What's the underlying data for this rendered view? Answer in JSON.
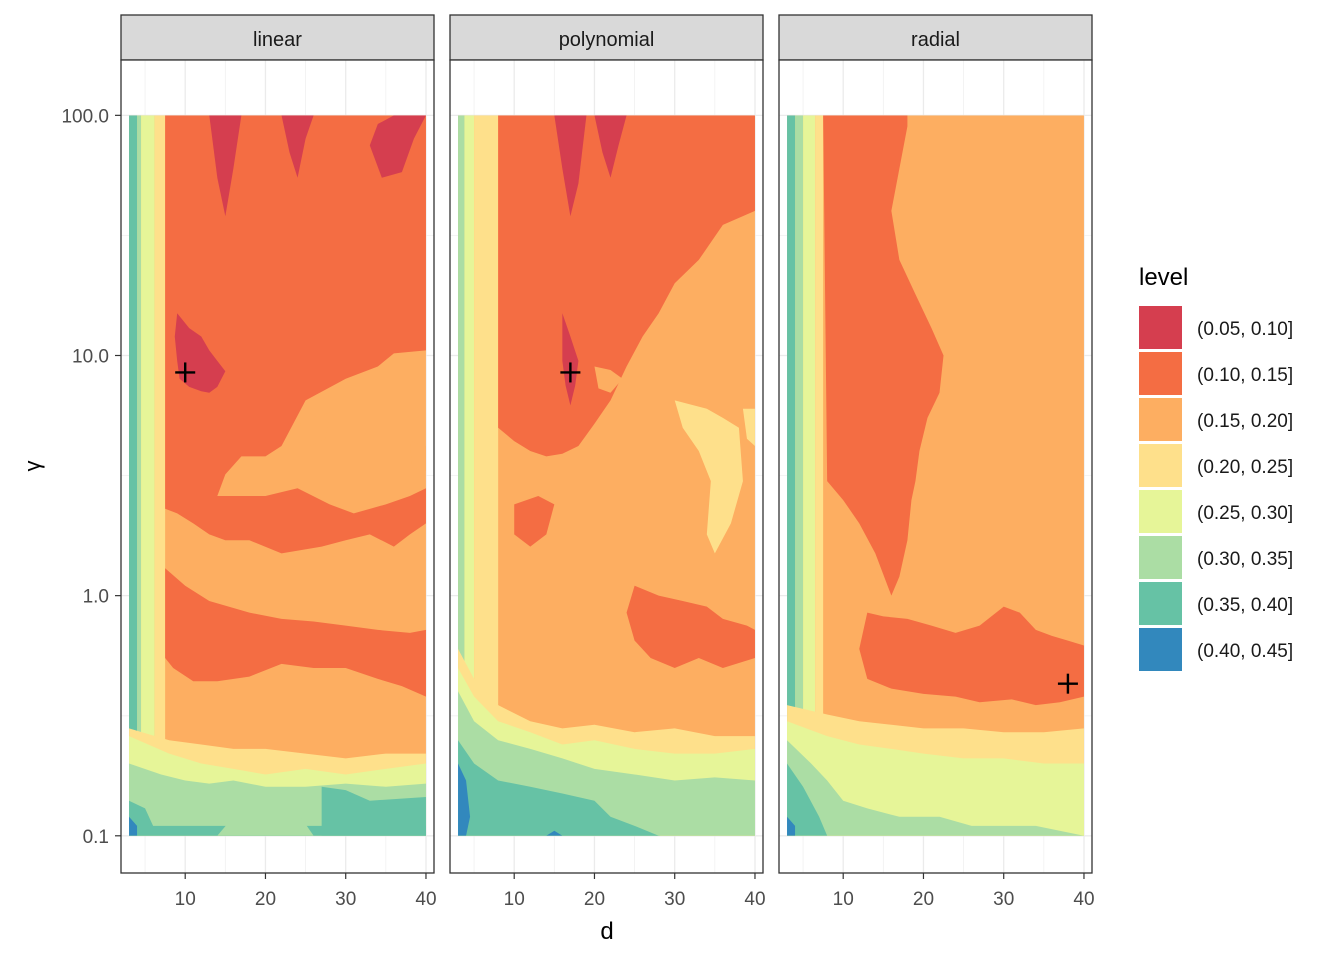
{
  "chart_data": {
    "type": "heatmap",
    "subtype": "filled-contour",
    "facet_by": "kernel",
    "xlabel": "d",
    "ylabel": "γ",
    "x_scale": "linear",
    "y_scale": "log10",
    "xlim": [
      2,
      41
    ],
    "ylim": [
      0.07,
      170
    ],
    "x_ticks": [
      10,
      20,
      30,
      40
    ],
    "x_tick_labels": [
      "10",
      "20",
      "30",
      "40"
    ],
    "y_ticks": [
      0.1,
      1,
      10,
      100
    ],
    "y_tick_labels": [
      "0.1",
      "1.0",
      "10.0",
      "100.0"
    ],
    "data_extent": {
      "x": [
        3,
        40
      ],
      "y": [
        0.1,
        100
      ]
    },
    "grid": true,
    "theme": "bw",
    "legend": {
      "title": "level",
      "position": "right",
      "levels": [
        {
          "label": "(0.05, 0.10]",
          "color": "#D53E4F"
        },
        {
          "label": "(0.10, 0.15]",
          "color": "#F46D43"
        },
        {
          "label": "(0.15, 0.20]",
          "color": "#FDAE61"
        },
        {
          "label": "(0.20, 0.25]",
          "color": "#FEE08B"
        },
        {
          "label": "(0.25, 0.30]",
          "color": "#E6F598"
        },
        {
          "label": "(0.30, 0.35]",
          "color": "#ABDDA4"
        },
        {
          "label": "(0.35, 0.40]",
          "color": "#66C2A5"
        },
        {
          "label": "(0.40, 0.45]",
          "color": "#3288BD"
        }
      ]
    },
    "facets": [
      {
        "label": "linear",
        "minimum": {
          "d": 10,
          "gamma": 8.5
        },
        "regions": [
          {
            "level": 1,
            "outline": [
              [
                7.5,
                100
              ],
              [
                40,
                100
              ],
              [
                40,
                10.5
              ],
              [
                36,
                10.2
              ],
              [
                34,
                9
              ],
              [
                30,
                8
              ],
              [
                25,
                6.5
              ],
              [
                22,
                4.2
              ],
              [
                20,
                3.8
              ],
              [
                17,
                3.8
              ],
              [
                15,
                3.2
              ],
              [
                14,
                2.6
              ],
              [
                20,
                2.6
              ],
              [
                24,
                2.8
              ],
              [
                28,
                2.4
              ],
              [
                31,
                2.2
              ],
              [
                35,
                2.4
              ],
              [
                38,
                2.6
              ],
              [
                40,
                2.8
              ],
              [
                40,
                2
              ],
              [
                38,
                1.8
              ],
              [
                36,
                1.6
              ],
              [
                33,
                1.8
              ],
              [
                30,
                1.7
              ],
              [
                27,
                1.6
              ],
              [
                22,
                1.5
              ],
              [
                18,
                1.7
              ],
              [
                15,
                1.7
              ],
              [
                13,
                1.8
              ],
              [
                11,
                2
              ],
              [
                9,
                2.2
              ],
              [
                7.5,
                2.3
              ]
            ]
          },
          {
            "level": 1,
            "outline": [
              [
                7.5,
                1.3
              ],
              [
                10,
                1.1
              ],
              [
                13,
                0.95
              ],
              [
                18,
                0.85
              ],
              [
                22,
                0.8
              ],
              [
                26,
                0.78
              ],
              [
                30,
                0.75
              ],
              [
                34,
                0.72
              ],
              [
                38,
                0.7
              ],
              [
                40,
                0.72
              ],
              [
                40,
                0.38
              ],
              [
                37,
                0.42
              ],
              [
                34,
                0.45
              ],
              [
                30,
                0.5
              ],
              [
                26,
                0.5
              ],
              [
                22,
                0.52
              ],
              [
                18,
                0.46
              ],
              [
                14,
                0.44
              ],
              [
                11,
                0.44
              ],
              [
                8.5,
                0.5
              ],
              [
                7.5,
                0.55
              ]
            ]
          },
          {
            "level": 0,
            "outline": [
              [
                9,
                15
              ],
              [
                10.5,
                13
              ],
              [
                12,
                12
              ],
              [
                13,
                10.5
              ],
              [
                14,
                9.5
              ],
              [
                15,
                8.6
              ],
              [
                14,
                7.4
              ],
              [
                13,
                7
              ],
              [
                12,
                7.1
              ],
              [
                10.5,
                7.4
              ],
              [
                9.3,
                8
              ],
              [
                9,
                9.5
              ],
              [
                8.7,
                12
              ]
            ]
          },
          {
            "level": 0,
            "outline": [
              [
                13,
                100
              ],
              [
                14,
                55
              ],
              [
                15,
                38
              ],
              [
                16,
                60
              ],
              [
                17,
                100
              ]
            ]
          },
          {
            "level": 0,
            "outline": [
              [
                22,
                100
              ],
              [
                23,
                70
              ],
              [
                24,
                55
              ],
              [
                25,
                80
              ],
              [
                26,
                100
              ]
            ]
          },
          {
            "level": 0,
            "outline": [
              [
                33,
                75
              ],
              [
                34.5,
                55
              ],
              [
                37,
                58
              ],
              [
                38.5,
                80
              ],
              [
                40,
                100
              ],
              [
                36,
                100
              ],
              [
                34,
                92
              ]
            ]
          },
          {
            "level": 2,
            "outline": [
              [
                24.5,
                6
              ],
              [
                26.5,
                5.5
              ],
              [
                28,
                5.8
              ],
              [
                27.5,
                4.5
              ],
              [
                25.5,
                4.2
              ],
              [
                24.3,
                5
              ]
            ]
          },
          {
            "level": 2,
            "outline": [
              [
                38,
                4.4
              ],
              [
                40,
                4.2
              ],
              [
                40,
                3.3
              ],
              [
                38.3,
                3.4
              ]
            ]
          }
        ]
      },
      {
        "label": "polynomial",
        "minimum": {
          "d": 17,
          "gamma": 8.5
        },
        "regions": [
          {
            "level": 1,
            "outline": [
              [
                8,
                100
              ],
              [
                40,
                100
              ],
              [
                40,
                40
              ],
              [
                36,
                35
              ],
              [
                33,
                25
              ],
              [
                30,
                20
              ],
              [
                28,
                15
              ],
              [
                26,
                12
              ],
              [
                24,
                9
              ],
              [
                22,
                6.5
              ],
              [
                20,
                5.2
              ],
              [
                18,
                4.2
              ],
              [
                16,
                3.9
              ],
              [
                14,
                3.8
              ],
              [
                12,
                4
              ],
              [
                10,
                4.4
              ],
              [
                8,
                5
              ]
            ]
          },
          {
            "level": 1,
            "outline": [
              [
                10,
                2.4
              ],
              [
                13,
                2.6
              ],
              [
                15,
                2.4
              ],
              [
                14,
                1.8
              ],
              [
                12,
                1.6
              ],
              [
                10,
                1.8
              ]
            ]
          },
          {
            "level": 1,
            "outline": [
              [
                25,
                1.1
              ],
              [
                28,
                1
              ],
              [
                31,
                0.95
              ],
              [
                34,
                0.9
              ],
              [
                36,
                0.8
              ],
              [
                39,
                0.75
              ],
              [
                40,
                0.72
              ],
              [
                40,
                0.55
              ],
              [
                36,
                0.5
              ],
              [
                33,
                0.55
              ],
              [
                30,
                0.5
              ],
              [
                27,
                0.55
              ],
              [
                25,
                0.65
              ],
              [
                24,
                0.85
              ]
            ]
          },
          {
            "level": 0,
            "outline": [
              [
                16,
                15
              ],
              [
                17,
                12
              ],
              [
                18,
                9.5
              ],
              [
                17.6,
                7.5
              ],
              [
                17,
                6.2
              ],
              [
                16.4,
                7.5
              ],
              [
                16,
                9.5
              ]
            ]
          },
          {
            "level": 0,
            "outline": [
              [
                15,
                100
              ],
              [
                16,
                60
              ],
              [
                17,
                38
              ],
              [
                18,
                52
              ],
              [
                19,
                100
              ]
            ]
          },
          {
            "level": 0,
            "outline": [
              [
                20,
                100
              ],
              [
                21,
                70
              ],
              [
                22,
                55
              ],
              [
                23,
                75
              ],
              [
                24,
                100
              ]
            ]
          },
          {
            "level": 2,
            "outline": [
              [
                20,
                9
              ],
              [
                22,
                8.7
              ],
              [
                23.5,
                8
              ],
              [
                22,
                7
              ],
              [
                20.5,
                7.3
              ]
            ]
          },
          {
            "level": 3,
            "outline": [
              [
                30,
                6.5
              ],
              [
                34,
                6
              ],
              [
                36,
                5.5
              ],
              [
                38,
                5
              ],
              [
                38.5,
                3
              ],
              [
                37,
                2
              ],
              [
                35,
                1.5
              ],
              [
                34,
                1.8
              ],
              [
                34.5,
                3
              ],
              [
                33,
                4
              ],
              [
                31,
                5
              ]
            ]
          },
          {
            "level": 3,
            "outline": [
              [
                38.5,
                6
              ],
              [
                40,
                6
              ],
              [
                40,
                4.2
              ],
              [
                39,
                4.5
              ]
            ]
          }
        ]
      },
      {
        "label": "radial",
        "minimum": {
          "d": 38,
          "gamma": 0.43
        },
        "regions": [
          {
            "level": 1,
            "outline": [
              [
                7.5,
                100
              ],
              [
                18,
                100
              ],
              [
                18,
                90
              ],
              [
                17,
                60
              ],
              [
                16,
                40
              ],
              [
                17,
                25
              ],
              [
                19,
                18
              ],
              [
                21,
                13
              ],
              [
                22.5,
                10
              ],
              [
                22,
                7
              ],
              [
                20.5,
                5.5
              ],
              [
                19.5,
                4
              ],
              [
                19,
                3
              ],
              [
                18.5,
                2.5
              ],
              [
                18,
                1.7
              ],
              [
                17,
                1.2
              ],
              [
                16,
                1
              ],
              [
                14,
                1.5
              ],
              [
                12,
                2
              ],
              [
                10,
                2.5
              ],
              [
                8,
                3
              ]
            ]
          },
          {
            "level": 1,
            "outline": [
              [
                13,
                0.85
              ],
              [
                15,
                0.82
              ],
              [
                18,
                0.8
              ],
              [
                21,
                0.75
              ],
              [
                24,
                0.7
              ],
              [
                27,
                0.75
              ],
              [
                30,
                0.9
              ],
              [
                32,
                0.85
              ],
              [
                34,
                0.72
              ],
              [
                36,
                0.68
              ],
              [
                38,
                0.65
              ],
              [
                40,
                0.62
              ],
              [
                40,
                0.38
              ],
              [
                37,
                0.36
              ],
              [
                34,
                0.35
              ],
              [
                31,
                0.37
              ],
              [
                27,
                0.36
              ],
              [
                24,
                0.38
              ],
              [
                20,
                0.39
              ],
              [
                16,
                0.41
              ],
              [
                13,
                0.45
              ],
              [
                12,
                0.6
              ]
            ]
          }
        ]
      }
    ]
  }
}
